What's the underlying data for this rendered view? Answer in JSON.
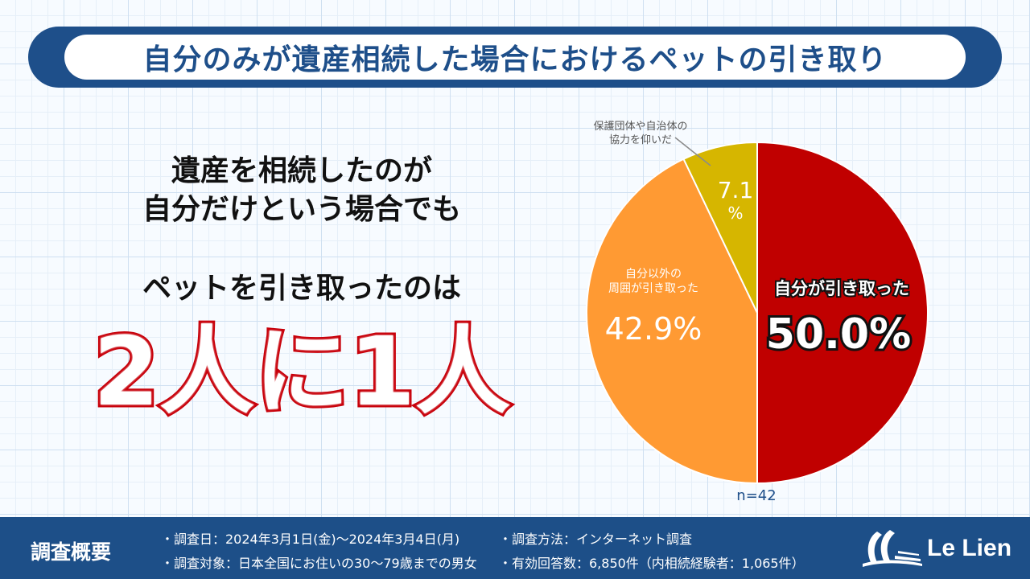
{
  "header": {
    "title": "自分のみが遺産相続した場合におけるペットの引き取り"
  },
  "lead": {
    "line1": "遺産を相続したのが",
    "line2": "自分だけという場合でも",
    "line3": "ペットを引き取ったのは",
    "highlight": "2人に1人"
  },
  "chart_data": {
    "type": "pie",
    "slices": [
      {
        "label": "自分が引き取った",
        "value": 50.0,
        "display": "50.0%",
        "color": "#c00000"
      },
      {
        "label": "自分以外の周囲が引き取った",
        "label_lines": [
          "自分以外の",
          "周囲が引き取った"
        ],
        "value": 42.9,
        "display": "42.9%",
        "color": "#ff9a33"
      },
      {
        "label": "保護団体や自治体の協力を仰いだ",
        "label_lines": [
          "保護団体や自治体の",
          "協力を仰いだ"
        ],
        "value": 7.1,
        "display_lines": [
          "7.1",
          "%"
        ],
        "color": "#d6b600"
      }
    ],
    "n_label": "n=42",
    "start": "12 o'clock, clockwise"
  },
  "footer": {
    "heading": "調査概要",
    "items": [
      "・調査日：2024年3月1日(金)〜2024年3月4日(月)",
      "・調査方法：インターネット調査",
      "・調査対象：日本全国にお住いの30〜79歳までの男女",
      "・有効回答数：6,850件（内相続経験者：1,065件）"
    ],
    "brand": "Le Lien"
  }
}
